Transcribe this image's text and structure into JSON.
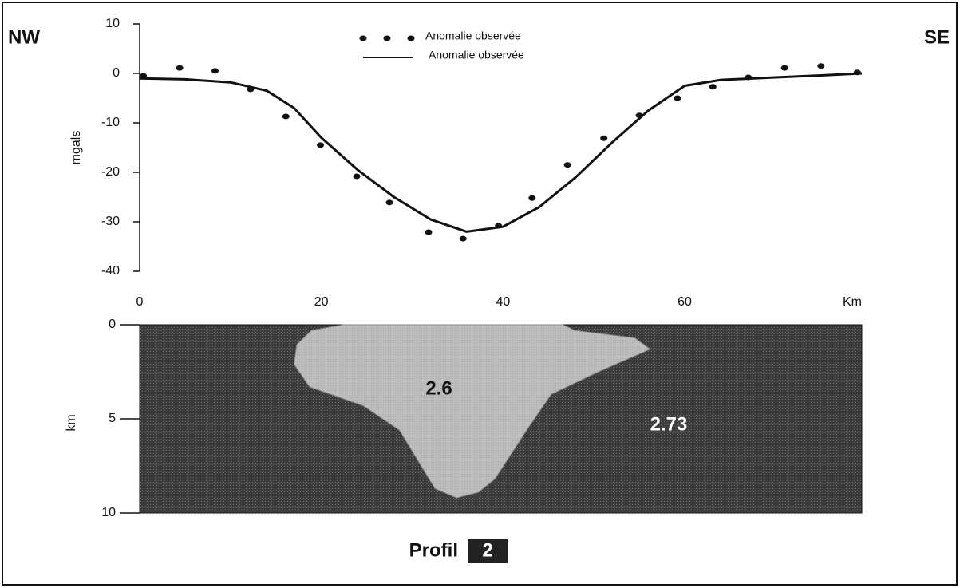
{
  "chart_data": [
    {
      "type": "profile",
      "left_label": "NW",
      "right_label": "SE",
      "ylabel": "mgals",
      "xunit": "Km",
      "xlim": [
        0,
        79.5
      ],
      "xticks": [
        0,
        20,
        40,
        60
      ],
      "ylim": [
        -40,
        10
      ],
      "yticks": [
        -40,
        -30,
        -20,
        -10,
        0,
        10
      ],
      "series": [
        {
          "name": "Anomalie observée",
          "type": "scatter",
          "color": "#111111",
          "x": [
            0.4,
            4.4,
            8.3,
            12.2,
            16.1,
            19.9,
            23.9,
            27.5,
            31.8,
            35.6,
            39.5,
            43.2,
            47.1,
            51.1,
            55.0,
            59.2,
            63.1,
            67.0,
            71.0,
            75.0,
            79.0
          ],
          "values": [
            -0.5,
            1.1,
            0.5,
            -3.2,
            -8.7,
            -14.5,
            -20.8,
            -26.1,
            -32.1,
            -33.4,
            -30.8,
            -25.2,
            -18.5,
            -13.1,
            -8.5,
            -5.0,
            -2.7,
            -0.8,
            1.1,
            1.5,
            0.2
          ]
        },
        {
          "name": "Anomalie observée",
          "type": "line",
          "color": "#111111",
          "x": [
            0,
            5,
            10,
            14,
            17,
            20,
            24,
            28,
            32,
            36,
            40,
            44,
            48,
            52,
            56,
            60,
            64,
            70,
            75,
            79.5
          ],
          "values": [
            -1,
            -1.2,
            -1.8,
            -3.5,
            -7,
            -13,
            -19.5,
            -25,
            -29.5,
            -32,
            -31,
            -27,
            -21,
            -14,
            -7.5,
            -2.5,
            -1.3,
            -0.8,
            -0.4,
            0
          ]
        }
      ]
    },
    {
      "type": "section",
      "ylabel": "km",
      "xlim": [
        0,
        79.5
      ],
      "ylim": [
        0,
        10
      ],
      "yticks": [
        0,
        5,
        10
      ],
      "background_density": 2.73,
      "background_color": "#3c3c3c",
      "body": {
        "density": 2.6,
        "color": "#bdbdbd",
        "x": [
          17.3,
          17.0,
          18.7,
          24.6,
          28.6,
          32.5,
          34.9,
          37.3,
          39.1,
          42.6,
          45.3,
          50.5,
          56.2,
          54.5,
          47.9,
          46.6,
          22.4,
          18.9
        ],
        "depth": [
          1.06,
          2.1,
          3.3,
          4.3,
          5.6,
          8.7,
          9.2,
          8.9,
          8.2,
          5.6,
          3.7,
          2.5,
          1.3,
          0.7,
          0.3,
          0,
          0,
          0.3
        ]
      }
    }
  ],
  "caption": {
    "text": "Profil",
    "number": 2
  }
}
